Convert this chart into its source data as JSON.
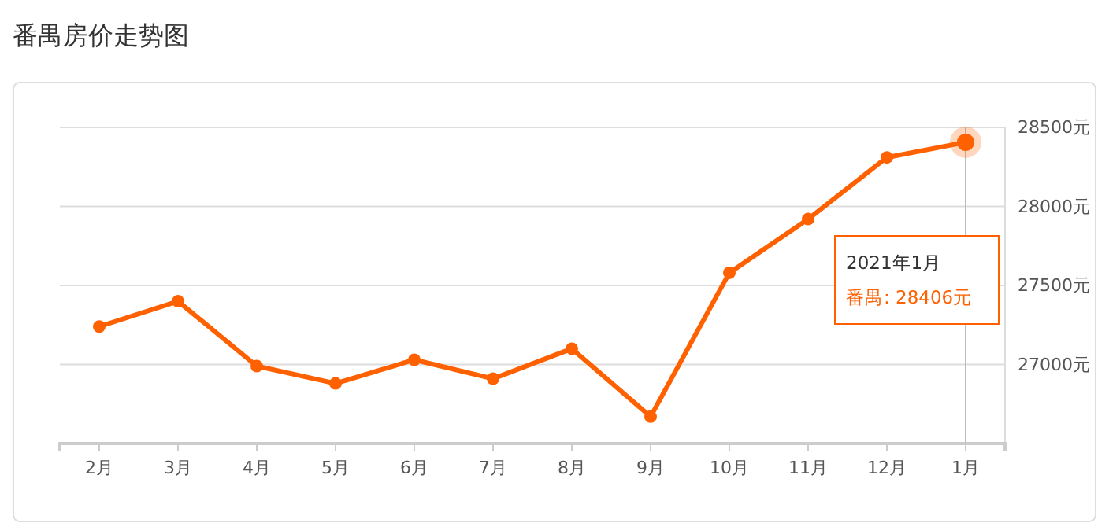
{
  "chart_data": {
    "type": "line",
    "title": "番禺房价走势图",
    "categories": [
      "2月",
      "3月",
      "4月",
      "5月",
      "6月",
      "7月",
      "8月",
      "9月",
      "10月",
      "11月",
      "12月",
      "1月"
    ],
    "series": [
      {
        "color": "#ff6000",
        "values": [
          27240,
          27400,
          26990,
          26880,
          27030,
          26910,
          27100,
          26670,
          27580,
          27920,
          28310,
          28406
        ]
      }
    ],
    "ylim": [
      26500,
      28500
    ],
    "yticks": [
      {
        "value": 27000,
        "label": "27000元"
      },
      {
        "value": 27500,
        "label": "27500元"
      },
      {
        "value": 28000,
        "label": "28000元"
      },
      {
        "value": 28500,
        "label": "28500元"
      }
    ],
    "grid": "y",
    "marker": "circle",
    "line_style": "solid",
    "ref_lines": [
      {
        "axis": "x",
        "value": "1月",
        "color": "#bbbbbb"
      }
    ],
    "annotations": [
      "2021年1月",
      "番禺: 28406元"
    ]
  }
}
